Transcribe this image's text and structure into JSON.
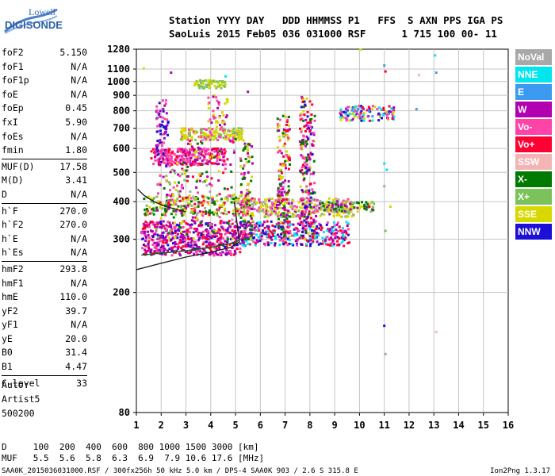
{
  "logo": {
    "line1": "Lowell",
    "line2": "DIGISONDE"
  },
  "header": {
    "line1": "Station YYYY DAY   DDD HHMMSS P1   FFS  S AXN PPS IGA PS",
    "line2": "SaoLuis 2015 Feb05 036 031000 RSF      1 715 100 00- 11"
  },
  "params": [
    {
      "key": "foF2",
      "value": "5.150"
    },
    {
      "key": "foF1",
      "value": "N/A"
    },
    {
      "key": "foF1p",
      "value": "N/A"
    },
    {
      "key": "foE",
      "value": "N/A"
    },
    {
      "key": "foEp",
      "value": "0.45"
    },
    {
      "key": "fxI",
      "value": "5.90"
    },
    {
      "key": "foEs",
      "value": "N/A"
    },
    {
      "key": "fmin",
      "value": "1.80"
    },
    {
      "key": "MUF(D)",
      "value": "17.58"
    },
    {
      "key": "M(D)",
      "value": "3.41"
    },
    {
      "key": "D",
      "value": "N/A"
    },
    {
      "key": "h`F",
      "value": "270.0"
    },
    {
      "key": "h`F2",
      "value": "270.0"
    },
    {
      "key": "h`E",
      "value": "N/A"
    },
    {
      "key": "h`Es",
      "value": "N/A"
    },
    {
      "key": "hmF2",
      "value": "293.8"
    },
    {
      "key": "hmF1",
      "value": "N/A"
    },
    {
      "key": "hmE",
      "value": "110.0"
    },
    {
      "key": "yF2",
      "value": "39.7"
    },
    {
      "key": "yF1",
      "value": "N/A"
    },
    {
      "key": "yE",
      "value": "20.0"
    },
    {
      "key": "B0",
      "value": "31.4"
    },
    {
      "key": "B1",
      "value": "4.47"
    },
    {
      "key": "C-level",
      "value": "33"
    }
  ],
  "auto": {
    "line1": "Auto:",
    "line2": "Artist5",
    "line3": "500200"
  },
  "legend": [
    {
      "label": "NoVal",
      "color": "#a8a8a8"
    },
    {
      "label": "NNE",
      "color": "#00e5ee"
    },
    {
      "label": "E",
      "color": "#3c9af0"
    },
    {
      "label": "W",
      "color": "#b000b0"
    },
    {
      "label": "Vo-",
      "color": "#ff44a8"
    },
    {
      "label": "Vo+",
      "color": "#ff0033"
    },
    {
      "label": "SSW",
      "color": "#f4b4b4"
    },
    {
      "label": "X-",
      "color": "#007a00"
    },
    {
      "label": "X+",
      "color": "#7cc25a"
    },
    {
      "label": "SSE",
      "color": "#d8d800"
    },
    {
      "label": "NNW",
      "color": "#1c10d8"
    }
  ],
  "footer": {
    "line1": "D     100  200  400  600  800 1000 1500 3000 [km]",
    "line2": "MUF   5.5  5.6  5.8  6.3  6.9  7.9 10.6 17.6 [MHz]",
    "line3": "SAA0K_2015036031000.RSF / 300fx256h 50 kHz 5.0 km / DPS-4 SAA0K 903 / 2.6 S 315.8 E",
    "version": "Ion2Png 1.3.17"
  },
  "chart_data": {
    "type": "scatter",
    "x_ticks": [
      1,
      2,
      3,
      4,
      5,
      6,
      7,
      8,
      9,
      10,
      11,
      12,
      13,
      14,
      15,
      16
    ],
    "y_ticks": [
      80,
      200,
      300,
      400,
      500,
      600,
      700,
      800,
      900,
      1000,
      1100,
      1280
    ],
    "xlim": [
      1,
      16
    ],
    "ylim": [
      80,
      1280
    ],
    "y_scale": "log",
    "grid": true,
    "series": [
      {
        "name": "NoVal",
        "color": "#a8a8a8"
      },
      {
        "name": "NNE",
        "color": "#00e5ee"
      },
      {
        "name": "E",
        "color": "#3c9af0"
      },
      {
        "name": "W",
        "color": "#b000b0"
      },
      {
        "name": "Vo-",
        "color": "#ff44a8"
      },
      {
        "name": "Vo+",
        "color": "#ff0033"
      },
      {
        "name": "SSW",
        "color": "#f4b4b4"
      },
      {
        "name": "X-",
        "color": "#007a00"
      },
      {
        "name": "X+",
        "color": "#7cc25a"
      },
      {
        "name": "SSE",
        "color": "#d8d800"
      },
      {
        "name": "NNW",
        "color": "#1c10d8"
      }
    ],
    "clusters": [
      {
        "x": [
          1.2,
          5.2
        ],
        "y": [
          265,
          345
        ],
        "n": 520,
        "mix": [
          5,
          4,
          3,
          10,
          3
        ]
      },
      {
        "x": [
          5.2,
          9.6
        ],
        "y": [
          285,
          345
        ],
        "n": 360,
        "mix": [
          3,
          4,
          10,
          1,
          5
        ]
      },
      {
        "x": [
          5.0,
          9.8
        ],
        "y": [
          355,
          410
        ],
        "n": 330,
        "mix": [
          9,
          9,
          8,
          3,
          4,
          0
        ]
      },
      {
        "x": [
          1.3,
          5.6
        ],
        "y": [
          360,
          420
        ],
        "n": 210,
        "mix": [
          9,
          7,
          8,
          5
        ]
      },
      {
        "x": [
          8.5,
          10.6
        ],
        "y": [
          370,
          400
        ],
        "n": 90,
        "mix": [
          9,
          8,
          7,
          3
        ]
      },
      {
        "x": [
          1.6,
          4.6
        ],
        "y": [
          530,
          600
        ],
        "n": 250,
        "mix": [
          4,
          3,
          5,
          4
        ]
      },
      {
        "x": [
          2.8,
          5.3
        ],
        "y": [
          640,
          700
        ],
        "n": 170,
        "mix": [
          9,
          9,
          8,
          4
        ]
      },
      {
        "x": [
          9.2,
          11.4
        ],
        "y": [
          740,
          830
        ],
        "n": 120,
        "mix": [
          3,
          4,
          5,
          9,
          10,
          1,
          2
        ]
      },
      {
        "x": [
          1.8,
          2.3
        ],
        "y": [
          520,
          870
        ],
        "n": 70,
        "mix": [
          3,
          4,
          10
        ]
      },
      {
        "x": [
          6.7,
          7.2
        ],
        "y": [
          300,
          780
        ],
        "n": 150,
        "mix": [
          4,
          3,
          5,
          9,
          7
        ]
      },
      {
        "x": [
          7.6,
          8.2
        ],
        "y": [
          300,
          900
        ],
        "n": 200,
        "mix": [
          4,
          3,
          5,
          9,
          7,
          10
        ]
      },
      {
        "x": [
          5.2,
          5.7
        ],
        "y": [
          300,
          640
        ],
        "n": 90,
        "mix": [
          4,
          3,
          9,
          7
        ]
      },
      {
        "x": [
          3.3,
          4.6
        ],
        "y": [
          950,
          1010
        ],
        "n": 60,
        "mix": [
          9,
          8
        ]
      },
      {
        "x": [
          3.0,
          5.0
        ],
        "y": [
          300,
          650
        ],
        "n": 140,
        "mix": [
          4,
          3,
          5,
          9,
          7,
          0
        ]
      },
      {
        "x": [
          1.8,
          3.0
        ],
        "y": [
          300,
          560
        ],
        "n": 90,
        "mix": [
          4,
          3,
          9,
          7,
          8
        ]
      },
      {
        "x": [
          3.9,
          4.7
        ],
        "y": [
          700,
          900
        ],
        "n": 40,
        "mix": [
          9,
          3,
          4
        ]
      }
    ],
    "stray_points": [
      {
        "x": 10.05,
        "y": 1275,
        "s": 9
      },
      {
        "x": 11.0,
        "y": 1130,
        "s": 2
      },
      {
        "x": 11.05,
        "y": 1080,
        "s": 5
      },
      {
        "x": 13.05,
        "y": 1220,
        "s": 1
      },
      {
        "x": 13.1,
        "y": 1070,
        "s": 2
      },
      {
        "x": 12.4,
        "y": 1050,
        "s": 6
      },
      {
        "x": 1.3,
        "y": 1105,
        "s": 9
      },
      {
        "x": 12.3,
        "y": 810,
        "s": 2
      },
      {
        "x": 11.0,
        "y": 535,
        "s": 1
      },
      {
        "x": 11.1,
        "y": 510,
        "s": 1
      },
      {
        "x": 11.0,
        "y": 450,
        "s": 0
      },
      {
        "x": 11.05,
        "y": 320,
        "s": 8
      },
      {
        "x": 11.0,
        "y": 155,
        "s": 10
      },
      {
        "x": 11.05,
        "y": 125,
        "s": 0
      },
      {
        "x": 13.1,
        "y": 148,
        "s": 6
      },
      {
        "x": 10.2,
        "y": 390,
        "s": 7
      },
      {
        "x": 10.4,
        "y": 385,
        "s": 5
      },
      {
        "x": 11.25,
        "y": 385,
        "s": 9
      },
      {
        "x": 2.4,
        "y": 1070,
        "s": 3
      },
      {
        "x": 4.6,
        "y": 1040,
        "s": 1
      },
      {
        "x": 5.5,
        "y": 925,
        "s": 3
      }
    ],
    "traces": [
      {
        "name": "hprofile",
        "color": "#202020",
        "points": [
          [
            1.0,
            238
          ],
          [
            2.0,
            250
          ],
          [
            3.0,
            262
          ],
          [
            4.0,
            272
          ],
          [
            4.8,
            282
          ],
          [
            5.15,
            294
          ]
        ]
      },
      {
        "name": "profile-upper",
        "color": "#202020",
        "points": [
          [
            5.15,
            294
          ],
          [
            5.1,
            320
          ],
          [
            5.02,
            360
          ],
          [
            4.95,
            400
          ]
        ]
      },
      {
        "name": "profile-left",
        "color": "#202020",
        "points": [
          [
            1.05,
            440
          ],
          [
            1.3,
            420
          ],
          [
            1.7,
            400
          ],
          [
            2.2,
            385
          ],
          [
            3.0,
            370
          ]
        ]
      },
      {
        "name": "hprofile-2",
        "color": "#006a00",
        "points": [
          [
            1.2,
            266
          ],
          [
            2.0,
            270
          ],
          [
            3.0,
            275
          ],
          [
            4.0,
            282
          ],
          [
            5.0,
            293
          ],
          [
            5.2,
            300
          ]
        ]
      }
    ]
  }
}
